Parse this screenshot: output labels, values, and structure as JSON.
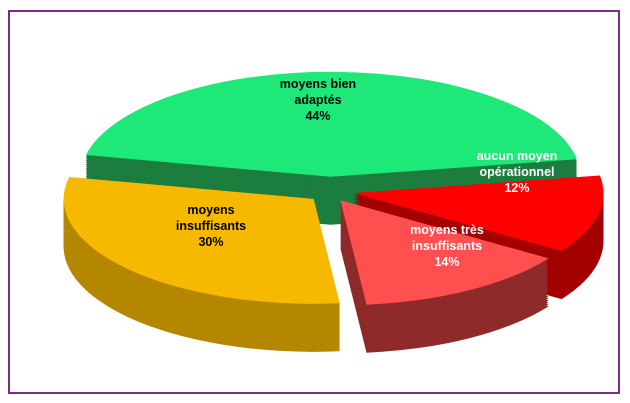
{
  "chart_data": {
    "type": "pie3d",
    "categories": [
      "moyens bien adaptés",
      "aucun moyen opérationnel",
      "moyens très insuffisants",
      "moyens insuffisants"
    ],
    "values": [
      44,
      12,
      14,
      30
    ],
    "value_labels": [
      "44%",
      "12%",
      "14%",
      "30%"
    ],
    "colors": [
      "#1ee878",
      "#ff0000",
      "#ff4f4f",
      "#f7b900"
    ],
    "side_colors": [
      "#1b7d3e",
      "#a30000",
      "#8e2a2a",
      "#b58700"
    ]
  }
}
